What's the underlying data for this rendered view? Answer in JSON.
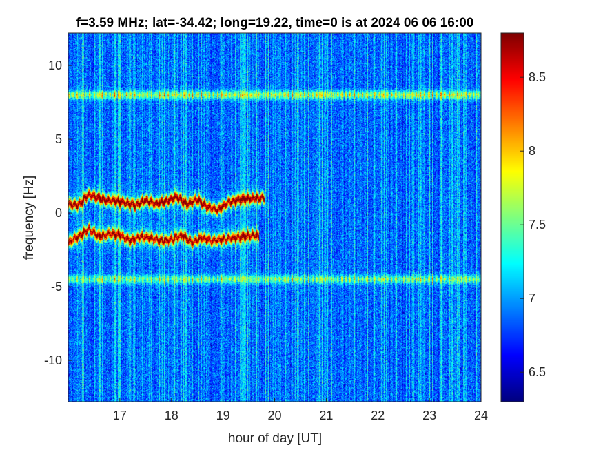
{
  "chart_data": {
    "type": "heatmap",
    "title": "f=3.59 MHz;  lat=-34.42; long=19.22, time=0 is at 2024 06 06 16:00",
    "xlabel": "hour of day [UT]",
    "ylabel": "frequency [Hz]",
    "xlim": [
      16,
      24
    ],
    "ylim": [
      -12.8,
      12.2
    ],
    "x_ticks": [
      "17",
      "18",
      "19",
      "20",
      "21",
      "22",
      "23",
      "24"
    ],
    "y_ticks": [
      "-10",
      "-5",
      "0",
      "5",
      "10"
    ],
    "colorbar": {
      "clim": [
        6.3,
        8.8
      ],
      "ticks": [
        "6.5",
        "7",
        "7.5",
        "8",
        "8.5"
      ],
      "colormap": "jet"
    },
    "background_level": 6.85,
    "features": [
      {
        "kind": "persistent_line",
        "frequency_hz": 8.0,
        "x_range": [
          16,
          24
        ],
        "level": 7.9
      },
      {
        "kind": "persistent_line",
        "frequency_hz": -4.5,
        "x_range": [
          16,
          24
        ],
        "level": 7.7
      },
      {
        "kind": "doppler_trace",
        "level": 8.7,
        "x": [
          16.0,
          16.2,
          16.4,
          16.5,
          16.7,
          16.9,
          17.1,
          17.3,
          17.5,
          17.7,
          17.9,
          18.1,
          18.3,
          18.5,
          18.7,
          18.9,
          19.1,
          19.3,
          19.5,
          19.8
        ],
        "y": [
          0.6,
          0.5,
          1.3,
          1.1,
          0.9,
          0.8,
          0.7,
          0.5,
          0.9,
          0.6,
          0.8,
          1.1,
          0.6,
          0.9,
          0.4,
          0.2,
          0.7,
          0.9,
          1.0,
          1.0
        ]
      },
      {
        "kind": "doppler_trace",
        "level": 8.6,
        "x": [
          16.0,
          16.2,
          16.4,
          16.6,
          16.8,
          17.0,
          17.2,
          17.4,
          17.6,
          17.8,
          18.0,
          18.2,
          18.4,
          18.6,
          18.8,
          19.0,
          19.2,
          19.4,
          19.6,
          19.7
        ],
        "y": [
          -2.0,
          -1.6,
          -1.1,
          -1.6,
          -1.4,
          -1.5,
          -1.9,
          -1.6,
          -1.7,
          -1.9,
          -1.8,
          -1.5,
          -2.0,
          -1.7,
          -1.9,
          -1.8,
          -1.7,
          -1.6,
          -1.5,
          -1.6
        ]
      }
    ]
  }
}
